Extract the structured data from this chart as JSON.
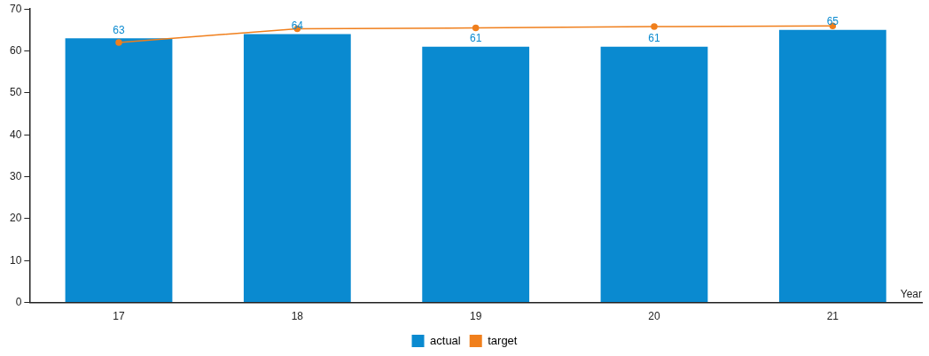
{
  "chart_data": {
    "type": "bar",
    "xlabel": "Year",
    "categories": [
      "17",
      "18",
      "19",
      "20",
      "21"
    ],
    "series": [
      {
        "name": "actual",
        "color": "#0a8ad0",
        "values": [
          63,
          64,
          61,
          61,
          65
        ],
        "value_labels": [
          "63",
          "64",
          "61",
          "61",
          "65"
        ]
      },
      {
        "name": "target",
        "type": "line",
        "color": "#f07f1c",
        "values": [
          62,
          65.3,
          65.5,
          65.8,
          66
        ],
        "marker": "circle"
      }
    ],
    "ylim": [
      0,
      70
    ],
    "yticks": [
      0,
      10,
      20,
      30,
      40,
      50,
      60,
      70
    ],
    "grid": false,
    "legend": "bottom"
  }
}
